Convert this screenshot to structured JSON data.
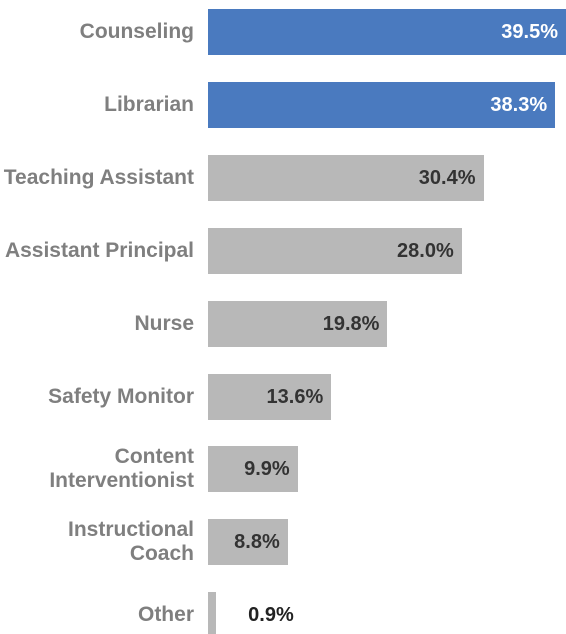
{
  "chart_data": {
    "type": "bar",
    "orientation": "horizontal",
    "categories": [
      "Counseling",
      "Librarian",
      "Teaching Assistant",
      "Assistant Principal",
      "Nurse",
      "Safety Monitor",
      "Content Interventionist",
      "Instructional Coach",
      "Other"
    ],
    "values": [
      39.5,
      38.3,
      30.4,
      28.0,
      19.8,
      13.6,
      9.9,
      8.8,
      0.9
    ],
    "value_labels": [
      "39.5%",
      "38.3%",
      "30.4%",
      "28.0%",
      "19.8%",
      "13.6%",
      "9.9%",
      "8.8%",
      "0.9%"
    ],
    "colors": [
      "#4a7abf",
      "#4a7abf",
      "#b8b8b8",
      "#b8b8b8",
      "#b8b8b8",
      "#b8b8b8",
      "#b8b8b8",
      "#b8b8b8",
      "#b8b8b8"
    ]
  }
}
